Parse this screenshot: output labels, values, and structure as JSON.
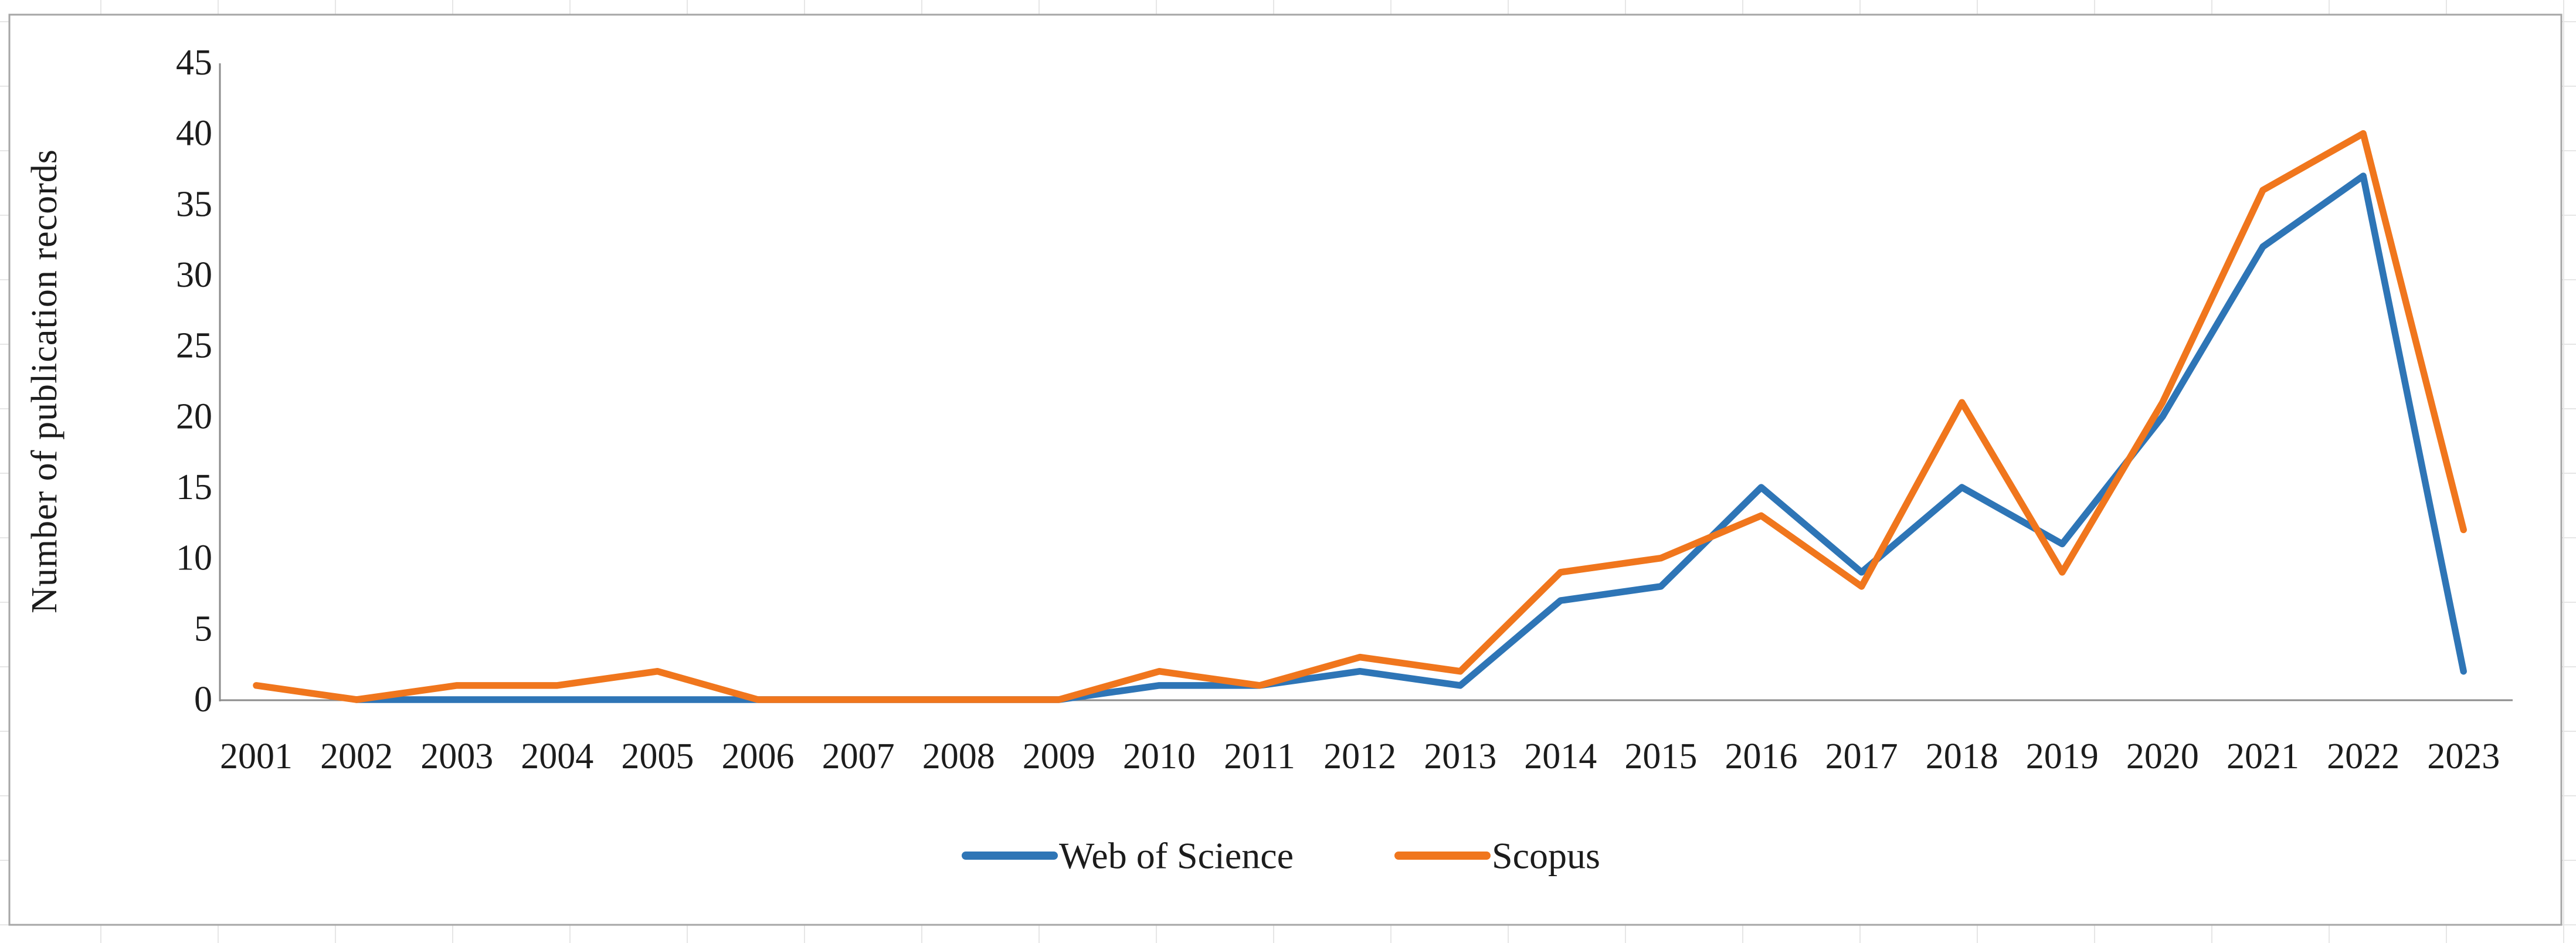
{
  "chart_data": {
    "type": "line",
    "title": "",
    "xlabel": "",
    "ylabel": "Number of publication records",
    "categories": [
      "2001",
      "2002",
      "2003",
      "2004",
      "2005",
      "2006",
      "2007",
      "2008",
      "2009",
      "2010",
      "2011",
      "2012",
      "2013",
      "2014",
      "2015",
      "2016",
      "2017",
      "2018",
      "2019",
      "2020",
      "2021",
      "2022",
      "2023"
    ],
    "series": [
      {
        "name": "Web of Science",
        "color": "#2E75B6",
        "values": [
          null,
          0,
          0,
          0,
          0,
          0,
          0,
          0,
          0,
          1,
          1,
          2,
          1,
          7,
          8,
          15,
          9,
          15,
          11,
          20,
          32,
          37,
          2
        ]
      },
      {
        "name": "Scopus",
        "color": "#F0761D",
        "values": [
          1,
          0,
          1,
          1,
          2,
          0,
          0,
          0,
          0,
          2,
          1,
          3,
          2,
          9,
          10,
          13,
          8,
          21,
          9,
          21,
          36,
          40,
          12
        ]
      }
    ],
    "ylim": [
      0,
      45
    ],
    "ytick_step": 5,
    "yticks": [
      "0",
      "5",
      "10",
      "15",
      "20",
      "25",
      "30",
      "35",
      "40",
      "45"
    ],
    "grid": false,
    "legend_position": "bottom-center",
    "axis_color": "#8C8C8C",
    "text_color": "#1C1C1C"
  },
  "figure": {
    "background": "#FFFFFF",
    "border_color": "#A6A6A6",
    "page_grid_color": "#E6E6E6"
  }
}
